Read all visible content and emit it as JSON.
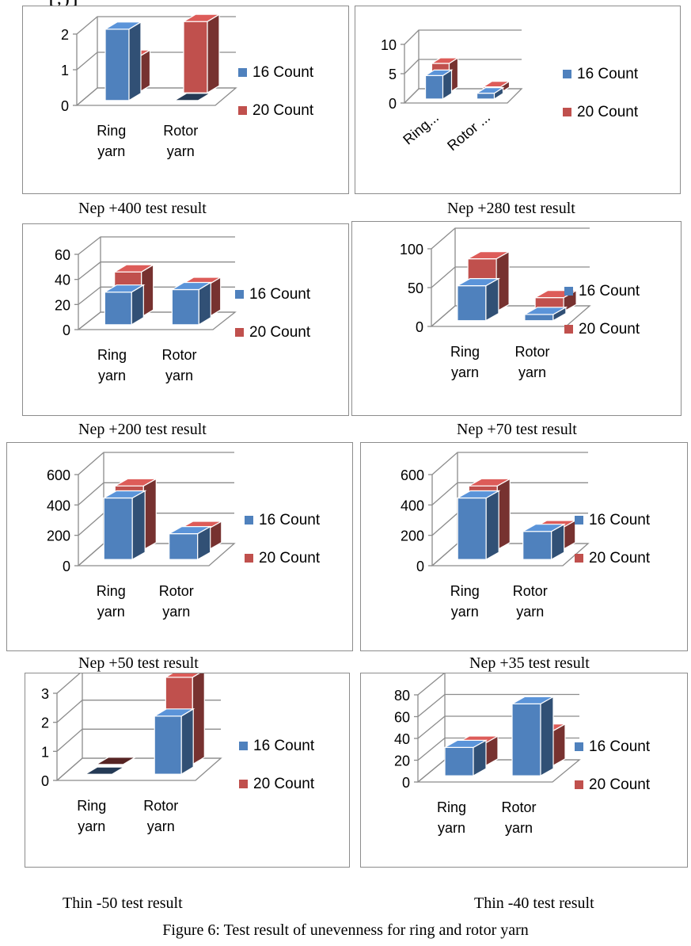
{
  "header_fragment": "[ , ) ]",
  "figure_caption": "Figure 6: Test result of unevenness for ring and rotor yarn",
  "colors": {
    "series_16": "#4f81bd",
    "series_20": "#c0504d",
    "grid": "#8c8c8c",
    "box_border": "#8c8c8c"
  },
  "chart_data": [
    {
      "type": "bar",
      "caption": "Nep +400 test result",
      "categories": [
        "Ring yarn",
        "Rotor yarn"
      ],
      "yticks": [
        "0",
        "1",
        "2"
      ],
      "ylim": [
        0,
        2
      ],
      "series": [
        {
          "name": "16 Count",
          "values": [
            2,
            0
          ]
        },
        {
          "name": "20 Count",
          "values": [
            1,
            2
          ]
        }
      ]
    },
    {
      "type": "bar",
      "caption": "Nep +280 test result",
      "categories": [
        "Ring...",
        "Rotor ..."
      ],
      "yticks": [
        "0",
        "5",
        "10"
      ],
      "ylim": [
        0,
        10
      ],
      "series": [
        {
          "name": "16 Count",
          "values": [
            4,
            1
          ]
        },
        {
          "name": "20 Count",
          "values": [
            5,
            1
          ]
        }
      ]
    },
    {
      "type": "bar",
      "caption": "Nep +200 test result",
      "categories": [
        "Ring yarn",
        "Rotor yarn"
      ],
      "yticks": [
        "0",
        "20",
        "40",
        "60"
      ],
      "ylim": [
        0,
        60
      ],
      "series": [
        {
          "name": "16 Count",
          "values": [
            26,
            28
          ]
        },
        {
          "name": "20 Count",
          "values": [
            36,
            26
          ]
        }
      ]
    },
    {
      "type": "bar",
      "caption": "Nep +70 test result",
      "categories": [
        "Ring yarn",
        "Rotor yarn"
      ],
      "yticks": [
        "0",
        "50",
        "100"
      ],
      "ylim": [
        0,
        100
      ],
      "series": [
        {
          "name": "16 Count",
          "values": [
            45,
            8
          ]
        },
        {
          "name": "20 Count",
          "values": [
            68,
            18
          ]
        }
      ]
    },
    {
      "type": "bar",
      "caption": "Nep +50 test result",
      "categories": [
        "Ring yarn",
        "Rotor yarn"
      ],
      "yticks": [
        "0",
        "200",
        "400",
        "600"
      ],
      "ylim": [
        0,
        600
      ],
      "series": [
        {
          "name": "16 Count",
          "values": [
            405,
            170
          ]
        },
        {
          "name": "20 Count",
          "values": [
            420,
            140
          ]
        }
      ]
    },
    {
      "type": "bar",
      "caption": "Nep +35 test result",
      "categories": [
        "Ring yarn",
        "Rotor yarn"
      ],
      "yticks": [
        "0",
        "200",
        "400",
        "600"
      ],
      "ylim": [
        0,
        600
      ],
      "series": [
        {
          "name": "16 Count",
          "values": [
            405,
            185
          ]
        },
        {
          "name": "20 Count",
          "values": [
            420,
            145
          ]
        }
      ]
    },
    {
      "type": "bar",
      "caption": "Thin -50 test result",
      "categories": [
        "Ring yarn",
        "Rotor yarn"
      ],
      "yticks": [
        "0",
        "1",
        "2",
        "3"
      ],
      "ylim": [
        0,
        3
      ],
      "series": [
        {
          "name": "16 Count",
          "values": [
            0,
            2
          ]
        },
        {
          "name": "20 Count",
          "values": [
            0,
            3
          ]
        }
      ]
    },
    {
      "type": "bar",
      "caption": "Thin -40 test result",
      "categories": [
        "Ring yarn",
        "Rotor yarn"
      ],
      "yticks": [
        "0",
        "20",
        "40",
        "60",
        "80"
      ],
      "ylim": [
        0,
        80
      ],
      "series": [
        {
          "name": "16 Count",
          "values": [
            26,
            66
          ]
        },
        {
          "name": "20 Count",
          "values": [
            21,
            32
          ]
        }
      ]
    }
  ]
}
